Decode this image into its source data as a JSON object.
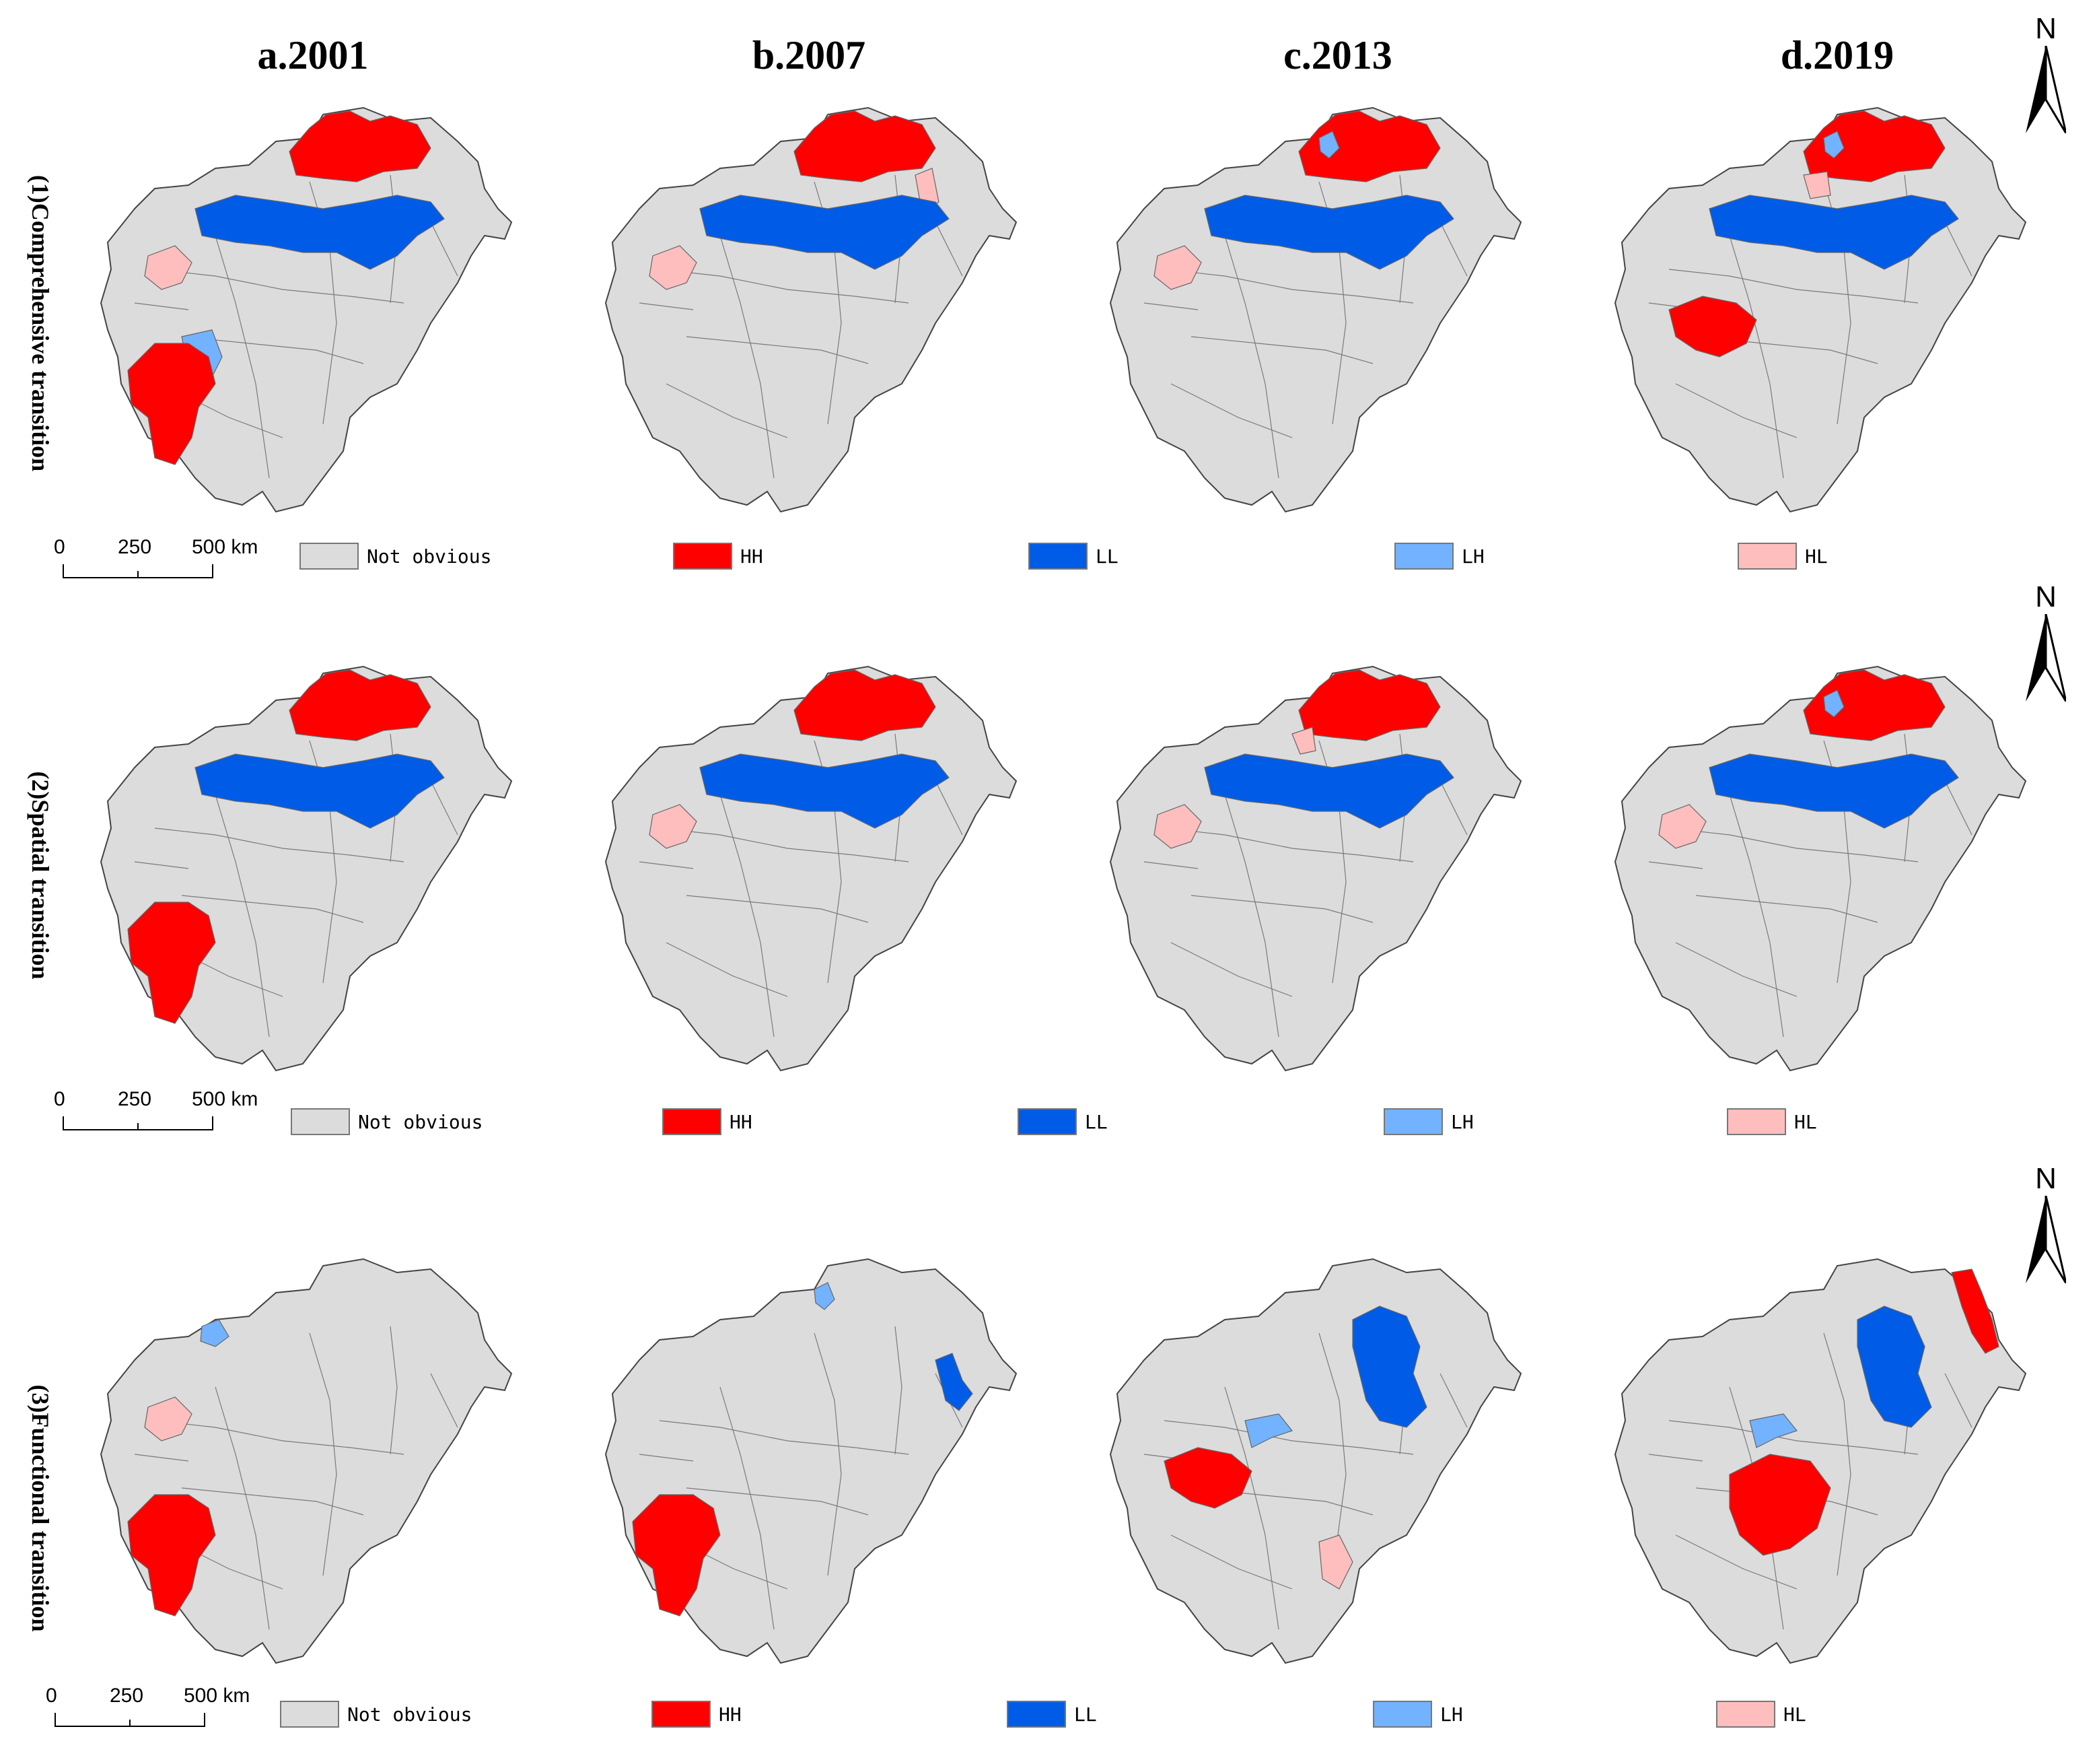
{
  "columns": [
    {
      "label": "a.2001"
    },
    {
      "label": "b.2007"
    },
    {
      "label": "c.2013"
    },
    {
      "label": "d.2019"
    }
  ],
  "rows": [
    {
      "label": "(1)Comprehensive transition",
      "maps": [
        [
          "HH:north",
          "LL:middle",
          "HL:west",
          "LH:south",
          "HH:southwest"
        ],
        [
          "HH:north",
          "HL:west",
          "HL:east",
          "LL:middle"
        ],
        [
          "HH:north",
          "LH:north",
          "LL:middle",
          "HL:west"
        ],
        [
          "HH:north",
          "LH:north",
          "HL:middle",
          "LL:middle",
          "HH:west"
        ]
      ]
    },
    {
      "label": "(2)Spatial transition",
      "maps": [
        [
          "HH:north",
          "LL:middle",
          "HH:southwest"
        ],
        [
          "HH:north",
          "HL:west",
          "LL:middle"
        ],
        [
          "HH:north",
          "HL:north",
          "HL:west",
          "LL:middle"
        ],
        [
          "HH:north",
          "LH:north",
          "HL:west",
          "LL:middle"
        ]
      ]
    },
    {
      "label": "(3)Functional transition",
      "maps": [
        [
          "HL:west",
          "LH:west",
          "HH:southwest"
        ],
        [
          "LH:north",
          "LL:east",
          "HH:southwest"
        ],
        [
          "LL:north",
          "LH:middle",
          "HH:west",
          "HL:south"
        ],
        [
          "HH:northeast",
          "LL:north",
          "LH:middle",
          "HH:south"
        ]
      ]
    }
  ],
  "legend": {
    "not_obvious": "Not obvious",
    "hh": "HH",
    "ll": "LL",
    "lh": "LH",
    "hl": "HL"
  },
  "colors": {
    "not_obvious": "#dcdcdc",
    "hh": "#ff0000",
    "ll": "#005ce6",
    "lh": "#73b2ff",
    "hl": "#ffbebe",
    "hl_light": "#f8e0dc",
    "outline": "#444444"
  },
  "scale": {
    "t0": "0",
    "t1": "250",
    "t2": "500 km"
  },
  "north_label": "N"
}
